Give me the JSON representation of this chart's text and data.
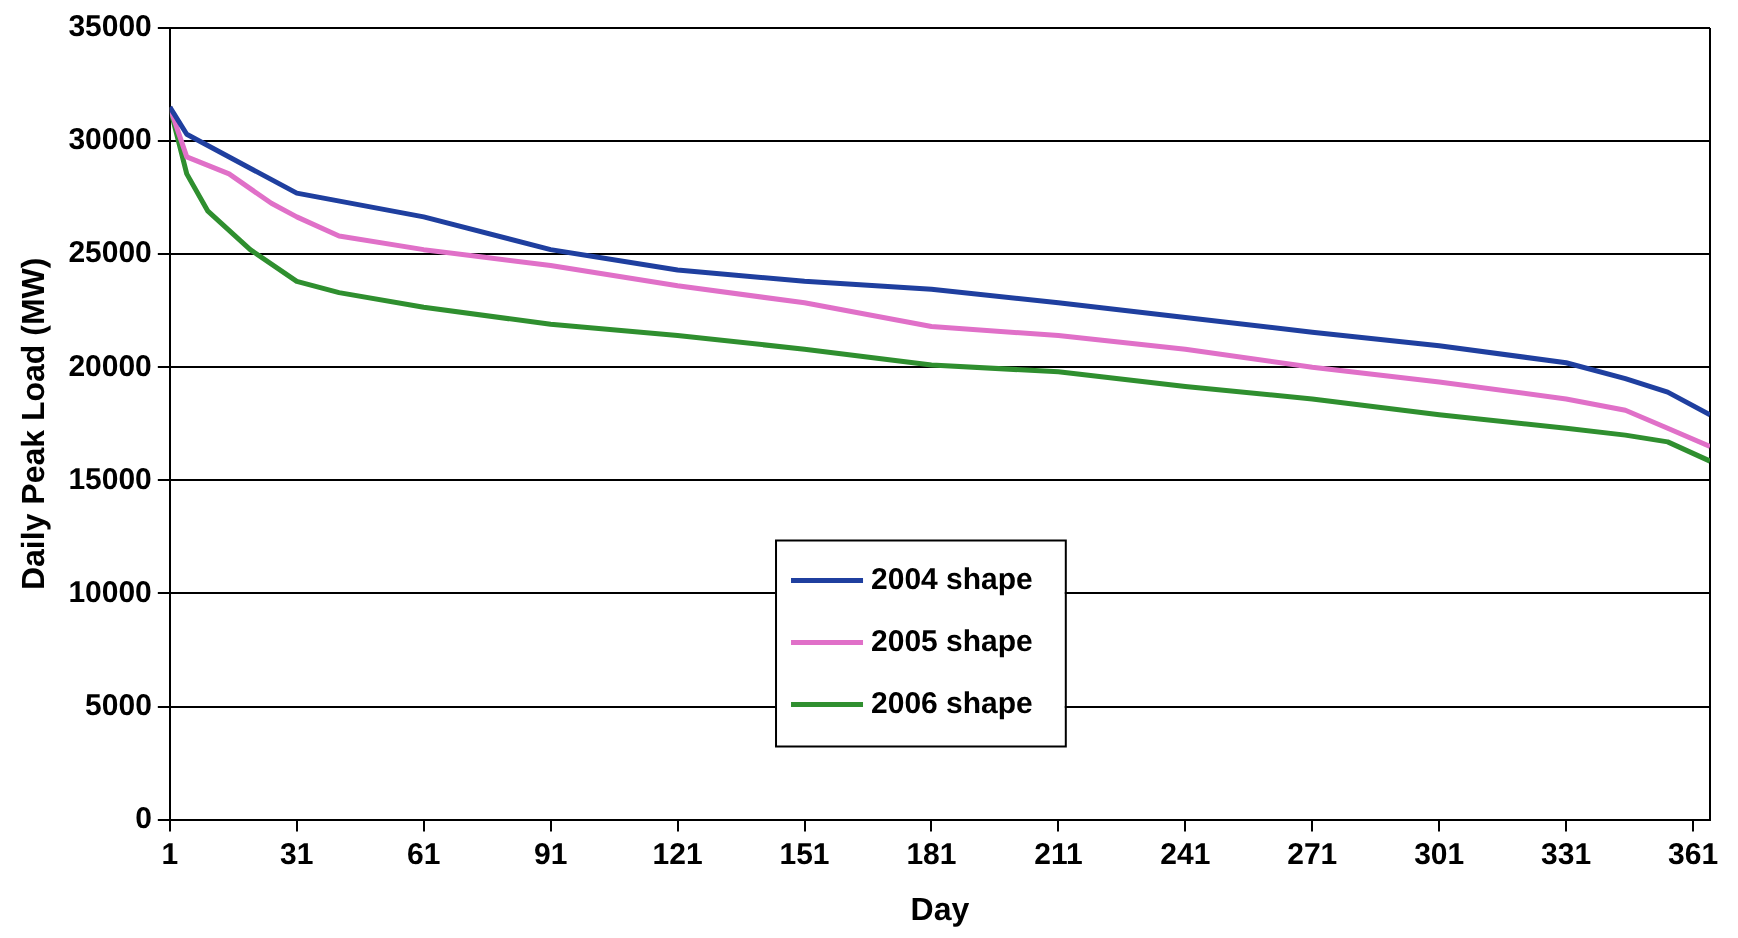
{
  "chart_data": {
    "type": "line",
    "xlabel": "Day",
    "ylabel": "Daily Peak Load (MW)",
    "xlim": [
      1,
      365
    ],
    "xticks": [
      1,
      31,
      61,
      91,
      121,
      151,
      181,
      211,
      241,
      271,
      301,
      331,
      361
    ],
    "ylim": [
      0,
      35000
    ],
    "yticks": [
      0,
      5000,
      10000,
      15000,
      20000,
      25000,
      30000,
      35000
    ],
    "grid": "y",
    "legend": "center",
    "marker": "none",
    "line_style": "solid",
    "series": [
      {
        "name": "2004 shape",
        "color": "#1f3f9f",
        "x": [
          1,
          5,
          31,
          61,
          91,
          121,
          151,
          181,
          211,
          241,
          271,
          301,
          331,
          345,
          355,
          365
        ],
        "values": [
          31500,
          30300,
          27700,
          26650,
          25200,
          24300,
          23800,
          23450,
          22850,
          22200,
          21550,
          20950,
          20200,
          19500,
          18900,
          17900
        ]
      },
      {
        "name": "2005 shape",
        "color": "#e070c8",
        "x": [
          1,
          5,
          15,
          25,
          31,
          41,
          61,
          91,
          121,
          151,
          181,
          211,
          241,
          271,
          301,
          331,
          345,
          355,
          365
        ],
        "values": [
          31500,
          29300,
          28550,
          27250,
          26650,
          25800,
          25200,
          24500,
          23600,
          22850,
          21800,
          21400,
          20800,
          20000,
          19350,
          18600,
          18100,
          17300,
          16500
        ]
      },
      {
        "name": "2006 shape",
        "color": "#2f8f2f",
        "x": [
          1,
          5,
          10,
          20,
          31,
          41,
          61,
          91,
          121,
          151,
          181,
          211,
          241,
          271,
          301,
          331,
          345,
          355,
          365
        ],
        "values": [
          31500,
          28550,
          26900,
          25200,
          23800,
          23300,
          22650,
          21900,
          21400,
          20800,
          20100,
          19800,
          19150,
          18600,
          17900,
          17300,
          17000,
          16700,
          15850
        ]
      }
    ]
  }
}
